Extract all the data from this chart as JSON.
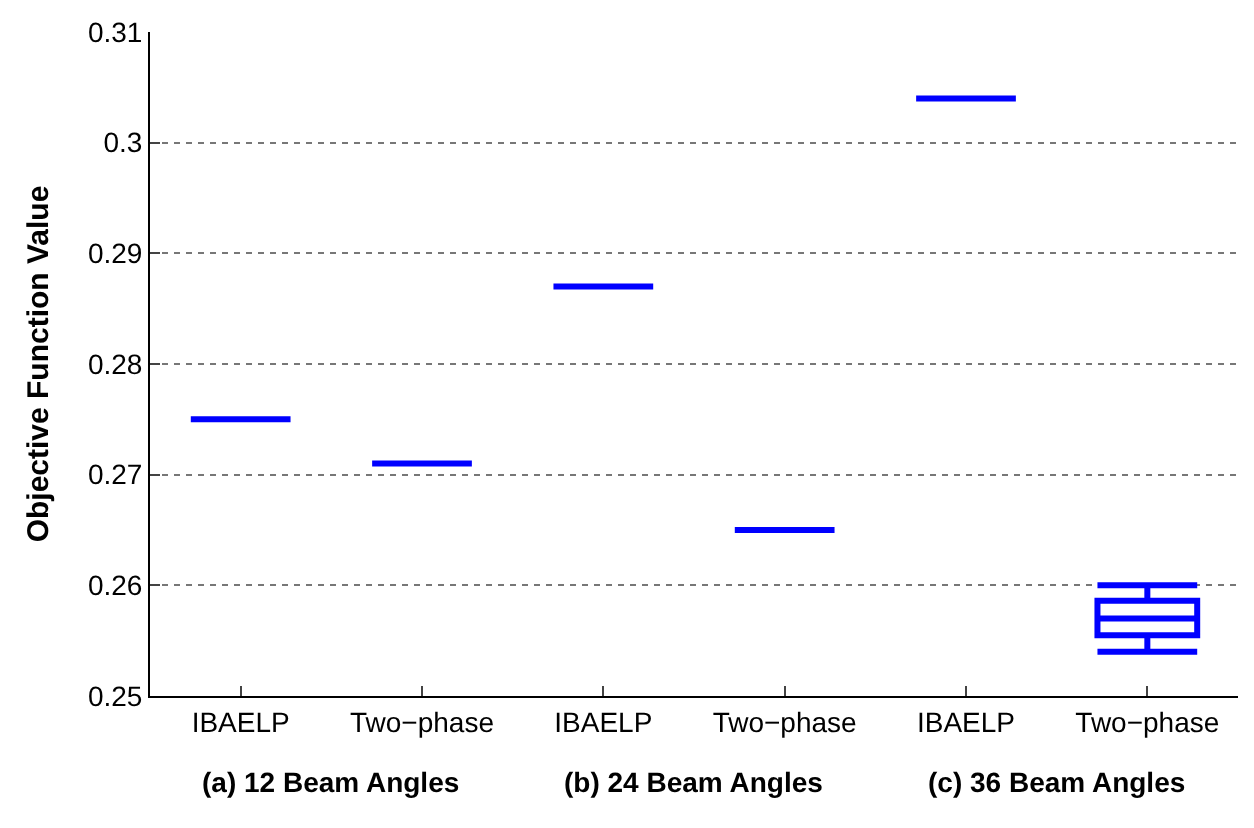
{
  "chart_data": {
    "type": "box",
    "ylabel": "Objective Function Value",
    "categories": [
      "IBAELP",
      "Two−phase",
      "IBAELP",
      "Two−phase",
      "IBAELP",
      "Two−phase"
    ],
    "boxes": [
      {
        "low": 0.275,
        "q1": 0.275,
        "median": 0.275,
        "q3": 0.275,
        "high": 0.275
      },
      {
        "low": 0.271,
        "q1": 0.271,
        "median": 0.271,
        "q3": 0.271,
        "high": 0.271
      },
      {
        "low": 0.287,
        "q1": 0.287,
        "median": 0.287,
        "q3": 0.287,
        "high": 0.287
      },
      {
        "low": 0.265,
        "q1": 0.265,
        "median": 0.265,
        "q3": 0.265,
        "high": 0.265
      },
      {
        "low": 0.304,
        "q1": 0.304,
        "median": 0.304,
        "q3": 0.304,
        "high": 0.304
      },
      {
        "low": 0.254,
        "q1": 0.2555,
        "median": 0.257,
        "q3": 0.2586,
        "high": 0.26
      }
    ],
    "color": "#0000ff",
    "ylim": [
      0.25,
      0.31
    ],
    "yticks": [
      0.25,
      0.26,
      0.27,
      0.28,
      0.29,
      0.3,
      0.31
    ],
    "grid": "y",
    "annotations": [
      "(a) 12 Beam Angles",
      "(b) 24 Beam Angles",
      "(c) 36 Beam Angles"
    ]
  }
}
